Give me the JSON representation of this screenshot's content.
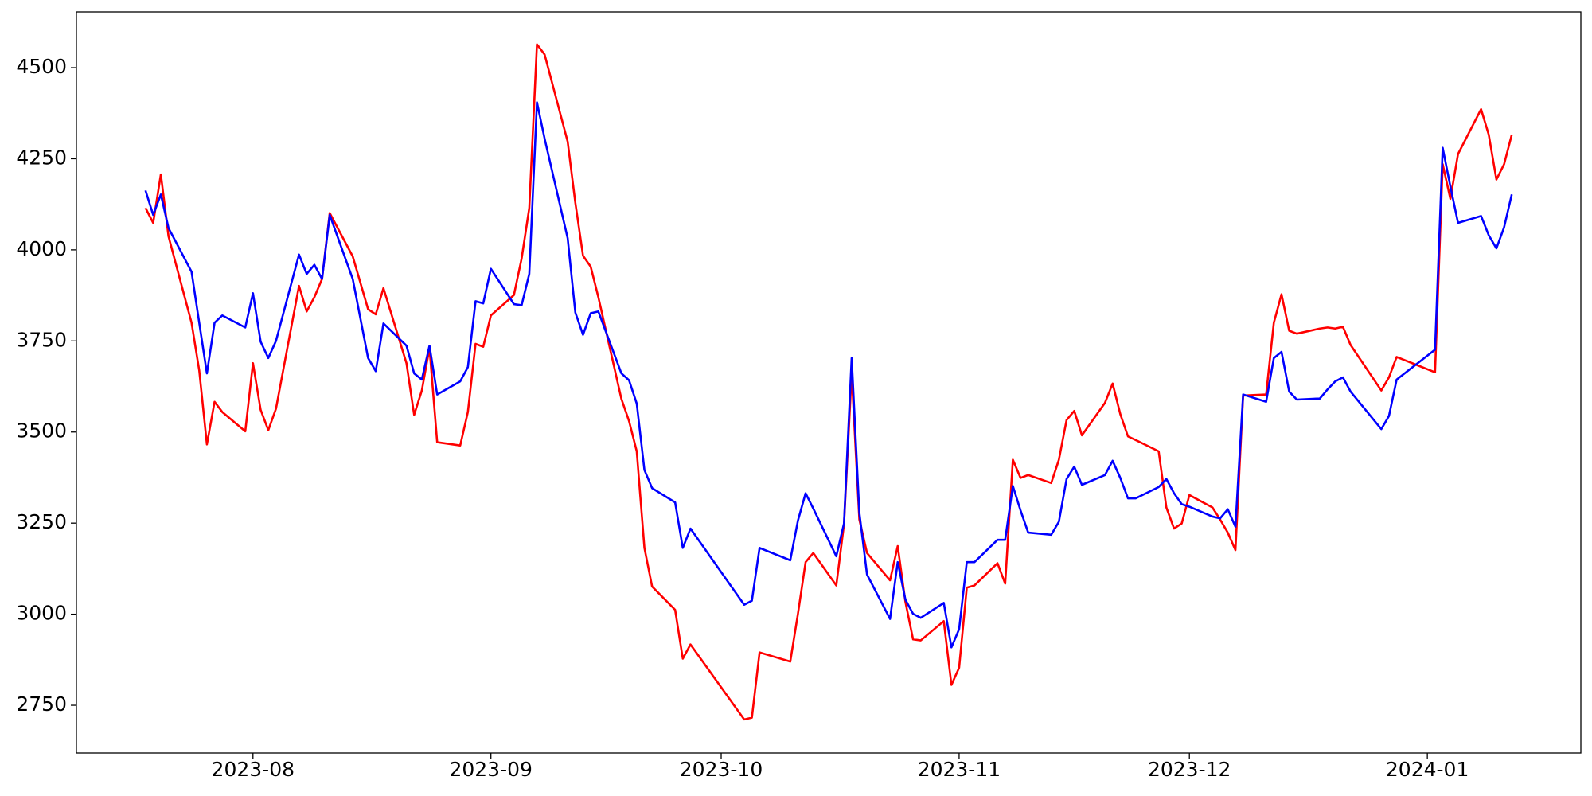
{
  "chart_data": {
    "type": "line",
    "x": [
      "2023-07-18",
      "2023-07-19",
      "2023-07-20",
      "2023-07-21",
      "2023-07-24",
      "2023-07-25",
      "2023-07-26",
      "2023-07-27",
      "2023-07-28",
      "2023-07-31",
      "2023-08-01",
      "2023-08-02",
      "2023-08-03",
      "2023-08-04",
      "2023-08-07",
      "2023-08-08",
      "2023-08-09",
      "2023-08-10",
      "2023-08-11",
      "2023-08-14",
      "2023-08-16",
      "2023-08-17",
      "2023-08-18",
      "2023-08-21",
      "2023-08-22",
      "2023-08-23",
      "2023-08-24",
      "2023-08-25",
      "2023-08-28",
      "2023-08-29",
      "2023-08-30",
      "2023-08-31",
      "2023-09-01",
      "2023-09-04",
      "2023-09-05",
      "2023-09-06",
      "2023-09-07",
      "2023-09-08",
      "2023-09-11",
      "2023-09-12",
      "2023-09-13",
      "2023-09-14",
      "2023-09-15",
      "2023-09-18",
      "2023-09-19",
      "2023-09-20",
      "2023-09-21",
      "2023-09-22",
      "2023-09-25",
      "2023-09-26",
      "2023-09-27",
      "2023-10-04",
      "2023-10-05",
      "2023-10-06",
      "2023-10-10",
      "2023-10-11",
      "2023-10-12",
      "2023-10-13",
      "2023-10-16",
      "2023-10-17",
      "2023-10-18",
      "2023-10-19",
      "2023-10-20",
      "2023-10-23",
      "2023-10-24",
      "2023-10-25",
      "2023-10-26",
      "2023-10-27",
      "2023-10-30",
      "2023-10-31",
      "2023-11-01",
      "2023-11-02",
      "2023-11-03",
      "2023-11-06",
      "2023-11-07",
      "2023-11-08",
      "2023-11-09",
      "2023-11-10",
      "2023-11-13",
      "2023-11-14",
      "2023-11-15",
      "2023-11-16",
      "2023-11-17",
      "2023-11-20",
      "2023-11-21",
      "2023-11-22",
      "2023-11-23",
      "2023-11-24",
      "2023-11-27",
      "2023-11-28",
      "2023-11-29",
      "2023-11-30",
      "2023-12-01",
      "2023-12-04",
      "2023-12-05",
      "2023-12-06",
      "2023-12-07",
      "2023-12-08",
      "2023-12-11",
      "2023-12-12",
      "2023-12-13",
      "2023-12-14",
      "2023-12-15",
      "2023-12-18",
      "2023-12-19",
      "2023-12-20",
      "2023-12-21",
      "2023-12-22",
      "2023-12-26",
      "2023-12-27",
      "2023-12-28",
      "2024-01-02",
      "2024-01-03",
      "2024-01-04",
      "2024-01-05",
      "2024-01-08",
      "2024-01-09",
      "2024-01-10",
      "2024-01-11",
      "2024-01-12"
    ],
    "series": [
      {
        "color": "#ff0000",
        "values": [
          4115,
          4074,
          4207,
          4037,
          3800,
          3669,
          3466,
          3583,
          3555,
          3502,
          3689,
          3561,
          3505,
          3564,
          3901,
          3831,
          3870,
          3920,
          4101,
          3982,
          3837,
          3823,
          3895,
          3689,
          3547,
          3614,
          3731,
          3472,
          3463,
          3555,
          3742,
          3734,
          3820,
          3876,
          3976,
          4115,
          4564,
          4536,
          4297,
          4129,
          3984,
          3954,
          3870,
          3591,
          3530,
          3447,
          3182,
          3076,
          3012,
          2878,
          2917,
          2711,
          2716,
          2895,
          2870,
          3001,
          3143,
          3168,
          3079,
          3246,
          3661,
          3260,
          3168,
          3093,
          3187,
          3034,
          2931,
          2928,
          2981,
          2806,
          2853,
          3073,
          3079,
          3140,
          3084,
          3424,
          3374,
          3382,
          3360,
          3424,
          3533,
          3558,
          3491,
          3580,
          3633,
          3549,
          3488,
          3478,
          3447,
          3293,
          3235,
          3249,
          3327,
          3293,
          3260,
          3224,
          3176,
          3600,
          3603,
          3800,
          3878,
          3778,
          3770,
          3784,
          3787,
          3784,
          3789,
          3739,
          3614,
          3650,
          3706,
          3664,
          4235,
          4140,
          4263,
          4386,
          4316,
          4193,
          4235,
          4316
        ]
      },
      {
        "color": "#0000ff",
        "values": [
          4163,
          4096,
          4152,
          4060,
          3940,
          3800,
          3661,
          3800,
          3820,
          3787,
          3881,
          3748,
          3703,
          3750,
          3987,
          3934,
          3959,
          3920,
          4096,
          3920,
          3703,
          3667,
          3798,
          3737,
          3661,
          3644,
          3737,
          3603,
          3639,
          3678,
          3859,
          3853,
          3948,
          3851,
          3848,
          3934,
          4405,
          4305,
          4032,
          3828,
          3767,
          3826,
          3831,
          3661,
          3642,
          3578,
          3396,
          3346,
          3307,
          3182,
          3235,
          3026,
          3037,
          3182,
          3148,
          3257,
          3332,
          3290,
          3159,
          3249,
          3703,
          3279,
          3109,
          2987,
          3143,
          3040,
          3001,
          2990,
          3031,
          2909,
          2959,
          3143,
          3143,
          3204,
          3204,
          3352,
          3285,
          3224,
          3218,
          3254,
          3371,
          3405,
          3355,
          3382,
          3421,
          3374,
          3318,
          3318,
          3349,
          3371,
          3332,
          3302,
          3295,
          3268,
          3263,
          3288,
          3240,
          3603,
          3583,
          3703,
          3720,
          3611,
          3589,
          3592,
          3617,
          3639,
          3650,
          3611,
          3508,
          3544,
          3644,
          3726,
          4280,
          4174,
          4074,
          4093,
          4040,
          4004,
          4062,
          4152
        ]
      }
    ],
    "xlim": [
      "2023-07-09",
      "2024-01-21"
    ],
    "xticks": [
      {
        "value": "2023-08-01",
        "label": "2023-08"
      },
      {
        "value": "2023-09-01",
        "label": "2023-09"
      },
      {
        "value": "2023-10-01",
        "label": "2023-10"
      },
      {
        "value": "2023-11-01",
        "label": "2023-11"
      },
      {
        "value": "2023-12-01",
        "label": "2023-12"
      },
      {
        "value": "2024-01-01",
        "label": "2024-01"
      }
    ],
    "ylim": [
      2619,
      4653
    ],
    "yticks": [
      2750,
      3000,
      3250,
      3500,
      3750,
      4000,
      4250,
      4500
    ],
    "grid": false
  }
}
